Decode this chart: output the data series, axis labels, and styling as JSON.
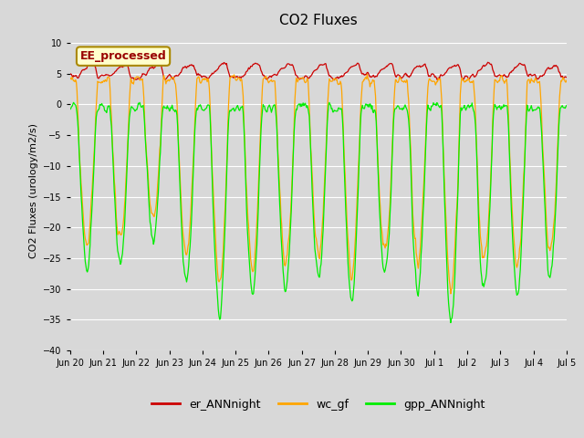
{
  "title": "CO2 Fluxes",
  "ylabel": "CO2 Fluxes (urology/m2/s)",
  "ylim": [
    -40,
    12
  ],
  "yticks": [
    -40,
    -35,
    -30,
    -25,
    -20,
    -15,
    -10,
    -5,
    0,
    5,
    10
  ],
  "fig_bg": "#d8d8d8",
  "plot_bg": "#d8d8d8",
  "line_colors": {
    "gpp": "#00ee00",
    "er": "#cc0000",
    "wc": "#ffa500"
  },
  "legend_labels": [
    "gpp_ANNnight",
    "er_ANNnight",
    "wc_gf"
  ],
  "annotation_text": "EE_processed",
  "annotation_bbox": {
    "facecolor": "#ffffcc",
    "edgecolor": "#aa8800",
    "linewidth": 1.5
  },
  "title_fontsize": 11,
  "label_fontsize": 8,
  "tick_fontsize": 7,
  "legend_fontsize": 9
}
